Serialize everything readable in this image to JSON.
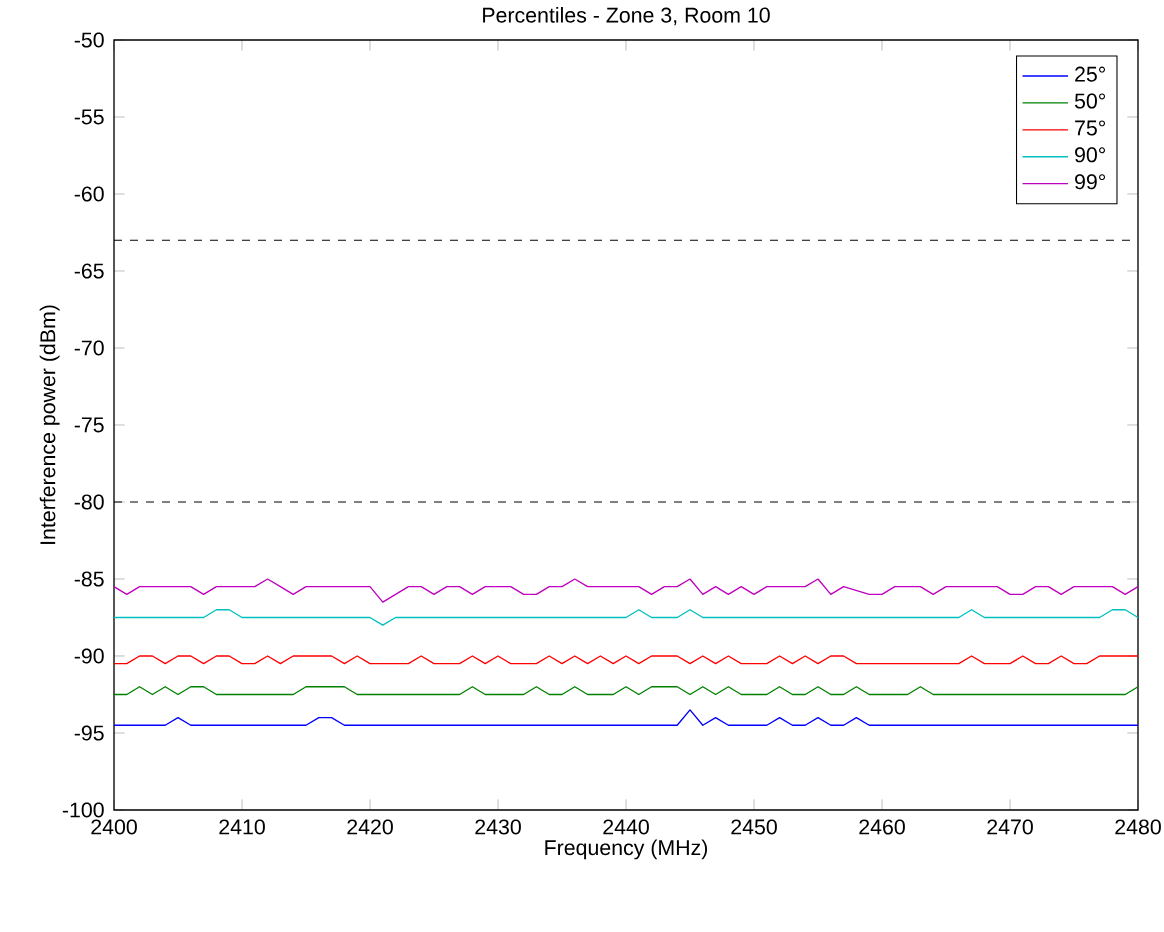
{
  "chart_data": {
    "type": "line",
    "title": "Percentiles - Zone 3, Room 10",
    "xlabel": "Frequency (MHz)",
    "ylabel": "Interference power (dBm)",
    "xlim": [
      2400,
      2480
    ],
    "xticks": [
      2400,
      2410,
      2420,
      2430,
      2440,
      2450,
      2460,
      2470,
      2480
    ],
    "ylim": [
      -100,
      -50
    ],
    "yticks": [
      -100,
      -95,
      -90,
      -85,
      -80,
      -75,
      -70,
      -65,
      -60,
      -55,
      -50
    ],
    "legend": "top right",
    "grid": false,
    "marker": "none",
    "line_style": "solid",
    "ref_lines": [
      {
        "axis": "y",
        "value": -63,
        "color": "#000000",
        "line_style": "dashed"
      },
      {
        "axis": "y",
        "value": -80,
        "color": "#000000",
        "line_style": "dashed"
      }
    ],
    "series": [
      {
        "name": "25°",
        "color": "#0000ff",
        "x": [
          2400,
          2404,
          2405,
          2406,
          2415,
          2416,
          2417,
          2418,
          2444,
          2445,
          2446,
          2447,
          2448,
          2451,
          2452,
          2453,
          2454,
          2455,
          2456,
          2457,
          2458,
          2459,
          2480
        ],
        "values": [
          -94.5,
          -94.5,
          -94,
          -94.5,
          -94.5,
          -94,
          -94,
          -94.5,
          -94.5,
          -93.5,
          -94.5,
          -94,
          -94.5,
          -94.5,
          -94,
          -94.5,
          -94.5,
          -94,
          -94.5,
          -94.5,
          -94,
          -94.5,
          -94.5
        ]
      },
      {
        "name": "50°",
        "color": "#008000",
        "x": [
          2400,
          2401,
          2402,
          2403,
          2404,
          2405,
          2406,
          2407,
          2408,
          2414,
          2415,
          2418,
          2419,
          2427,
          2428,
          2429,
          2432,
          2433,
          2434,
          2435,
          2436,
          2437,
          2439,
          2440,
          2441,
          2442,
          2444,
          2445,
          2446,
          2447,
          2448,
          2449,
          2451,
          2452,
          2453,
          2454,
          2455,
          2456,
          2457,
          2458,
          2459,
          2462,
          2463,
          2464,
          2479,
          2480
        ],
        "values": [
          -92.5,
          -92.5,
          -92,
          -92.5,
          -92,
          -92.5,
          -92,
          -92,
          -92.5,
          -92.5,
          -92,
          -92,
          -92.5,
          -92.5,
          -92,
          -92.5,
          -92.5,
          -92,
          -92.5,
          -92.5,
          -92,
          -92.5,
          -92.5,
          -92,
          -92.5,
          -92,
          -92,
          -92.5,
          -92,
          -92.5,
          -92,
          -92.5,
          -92.5,
          -92,
          -92.5,
          -92.5,
          -92,
          -92.5,
          -92.5,
          -92,
          -92.5,
          -92.5,
          -92,
          -92.5,
          -92.5,
          -92
        ]
      },
      {
        "name": "75°",
        "color": "#ff0000",
        "x": [
          2400,
          2401,
          2402,
          2403,
          2404,
          2405,
          2406,
          2407,
          2408,
          2409,
          2410,
          2411,
          2412,
          2413,
          2414,
          2416,
          2417,
          2418,
          2419,
          2420,
          2423,
          2424,
          2425,
          2427,
          2428,
          2429,
          2430,
          2431,
          2433,
          2434,
          2435,
          2436,
          2437,
          2438,
          2439,
          2440,
          2441,
          2442,
          2443,
          2444,
          2445,
          2446,
          2447,
          2448,
          2449,
          2451,
          2452,
          2453,
          2454,
          2455,
          2456,
          2457,
          2458,
          2466,
          2467,
          2468,
          2470,
          2471,
          2472,
          2473,
          2474,
          2475,
          2476,
          2477,
          2480
        ],
        "values": [
          -90.5,
          -90.5,
          -90,
          -90,
          -90.5,
          -90,
          -90,
          -90.5,
          -90,
          -90,
          -90.5,
          -90.5,
          -90,
          -90.5,
          -90,
          -90,
          -90,
          -90.5,
          -90,
          -90.5,
          -90.5,
          -90,
          -90.5,
          -90.5,
          -90,
          -90.5,
          -90,
          -90.5,
          -90.5,
          -90,
          -90.5,
          -90,
          -90.5,
          -90,
          -90.5,
          -90,
          -90.5,
          -90,
          -90,
          -90,
          -90.5,
          -90,
          -90.5,
          -90,
          -90.5,
          -90.5,
          -90,
          -90.5,
          -90,
          -90.5,
          -90,
          -90,
          -90.5,
          -90.5,
          -90,
          -90.5,
          -90.5,
          -90,
          -90.5,
          -90.5,
          -90,
          -90.5,
          -90.5,
          -90,
          -90
        ]
      },
      {
        "name": "90°",
        "color": "#00bfbf",
        "x": [
          2400,
          2407,
          2408,
          2409,
          2410,
          2420,
          2421,
          2422,
          2440,
          2441,
          2442,
          2444,
          2445,
          2446,
          2466,
          2467,
          2468,
          2477,
          2478,
          2479,
          2480
        ],
        "values": [
          -87.5,
          -87.5,
          -87,
          -87,
          -87.5,
          -87.5,
          -88,
          -87.5,
          -87.5,
          -87,
          -87.5,
          -87.5,
          -87,
          -87.5,
          -87.5,
          -87,
          -87.5,
          -87.5,
          -87,
          -87,
          -87.5
        ]
      },
      {
        "name": "99°",
        "color": "#bf00bf",
        "x": [
          2400,
          2401,
          2402,
          2406,
          2407,
          2408,
          2411,
          2412,
          2413,
          2414,
          2415,
          2420,
          2421,
          2422,
          2423,
          2424,
          2425,
          2426,
          2427,
          2428,
          2429,
          2431,
          2432,
          2433,
          2434,
          2435,
          2436,
          2437,
          2441,
          2442,
          2443,
          2444,
          2445,
          2446,
          2447,
          2448,
          2449,
          2450,
          2451,
          2454,
          2455,
          2456,
          2457,
          2459,
          2460,
          2461,
          2463,
          2464,
          2465,
          2469,
          2470,
          2471,
          2472,
          2473,
          2474,
          2475,
          2478,
          2479,
          2480
        ],
        "values": [
          -85.5,
          -86,
          -85.5,
          -85.5,
          -86,
          -85.5,
          -85.5,
          -85,
          -85.5,
          -86,
          -85.5,
          -85.5,
          -86.5,
          -86,
          -85.5,
          -85.5,
          -86,
          -85.5,
          -85.5,
          -86,
          -85.5,
          -85.5,
          -86,
          -86,
          -85.5,
          -85.5,
          -85,
          -85.5,
          -85.5,
          -86,
          -85.5,
          -85.5,
          -85,
          -86,
          -85.5,
          -86,
          -85.5,
          -86,
          -85.5,
          -85.5,
          -85,
          -86,
          -85.5,
          -86,
          -86,
          -85.5,
          -85.5,
          -86,
          -85.5,
          -85.5,
          -86,
          -86,
          -85.5,
          -85.5,
          -86,
          -85.5,
          -85.5,
          -86,
          -85.5
        ]
      }
    ]
  }
}
